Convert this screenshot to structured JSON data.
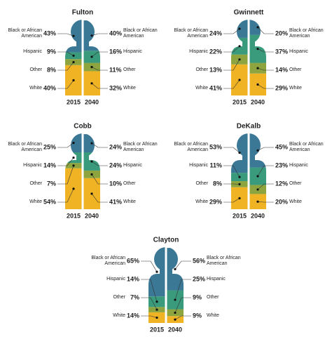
{
  "chart_data": [
    {
      "type": "pictogram",
      "title": "Fulton",
      "categories": [
        "Black or African American",
        "Hispanic",
        "Other",
        "White"
      ],
      "colors": [
        "#3b7896",
        "#3a9a7c",
        "#8da43f",
        "#f0b323"
      ],
      "series": [
        {
          "name": "2015",
          "values": [
            43,
            9,
            8,
            40
          ],
          "value_labels": [
            "43%",
            "9%",
            "8%",
            "40%"
          ]
        },
        {
          "name": "2040",
          "values": [
            40,
            16,
            11,
            32
          ],
          "value_labels": [
            "40%",
            "16%",
            "11%",
            "32%"
          ]
        }
      ]
    },
    {
      "type": "pictogram",
      "title": "Gwinnett",
      "categories": [
        "Black or African American",
        "Hispanic",
        "Other",
        "White"
      ],
      "colors": [
        "#3b7896",
        "#3a9a7c",
        "#8da43f",
        "#f0b323"
      ],
      "series": [
        {
          "name": "2015",
          "values": [
            24,
            22,
            13,
            41
          ],
          "value_labels": [
            "24%",
            "22%",
            "13%",
            "41%"
          ]
        },
        {
          "name": "2040",
          "values": [
            20,
            37,
            14,
            29
          ],
          "value_labels": [
            "20%",
            "37%",
            "14%",
            "29%"
          ]
        }
      ]
    },
    {
      "type": "pictogram",
      "title": "Cobb",
      "categories": [
        "Black or African American",
        "Hispanic",
        "Other",
        "White"
      ],
      "colors": [
        "#3b7896",
        "#3a9a7c",
        "#8da43f",
        "#f0b323"
      ],
      "series": [
        {
          "name": "2015",
          "values": [
            25,
            14,
            7,
            54
          ],
          "value_labels": [
            "25%",
            "14%",
            "7%",
            "54%"
          ]
        },
        {
          "name": "2040",
          "values": [
            24,
            24,
            10,
            41
          ],
          "value_labels": [
            "24%",
            "24%",
            "10%",
            "41%"
          ]
        }
      ]
    },
    {
      "type": "pictogram",
      "title": "DeKalb",
      "categories": [
        "Black or African American",
        "Hispanic",
        "Other",
        "White"
      ],
      "colors": [
        "#3b7896",
        "#3a9a7c",
        "#8da43f",
        "#f0b323"
      ],
      "series": [
        {
          "name": "2015",
          "values": [
            53,
            11,
            8,
            29
          ],
          "value_labels": [
            "53%",
            "11%",
            "8%",
            "29%"
          ]
        },
        {
          "name": "2040",
          "values": [
            45,
            23,
            12,
            20
          ],
          "value_labels": [
            "45%",
            "23%",
            "12%",
            "20%"
          ]
        }
      ]
    },
    {
      "type": "pictogram",
      "title": "Clayton",
      "categories": [
        "Black or African American",
        "Hispanic",
        "Other",
        "White"
      ],
      "colors": [
        "#3b7896",
        "#3a9a7c",
        "#8da43f",
        "#f0b323"
      ],
      "series": [
        {
          "name": "2015",
          "values": [
            65,
            14,
            7,
            14
          ],
          "value_labels": [
            "65%",
            "14%",
            "7%",
            "14%"
          ]
        },
        {
          "name": "2040",
          "values": [
            56,
            25,
            9,
            9
          ],
          "value_labels": [
            "56%",
            "25%",
            "9%",
            "9%"
          ]
        }
      ]
    }
  ]
}
